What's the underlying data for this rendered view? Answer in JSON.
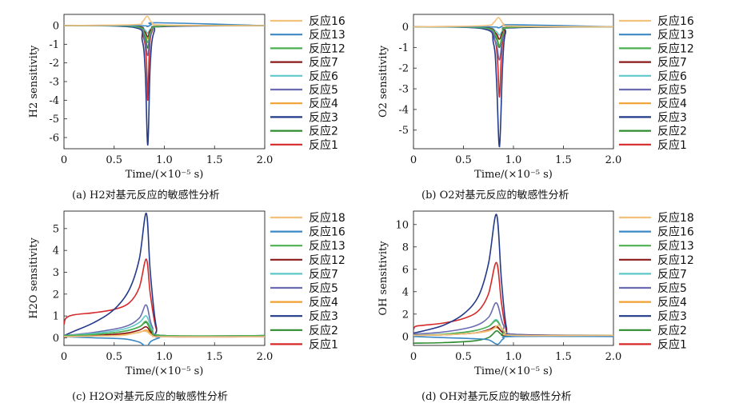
{
  "chart_data": [
    {
      "type": "line",
      "caption": "(a) H2对基元反应的敏感性分析",
      "xlabel": "Time/(×10⁻⁵ s)",
      "ylabel": "H2 sensitivity",
      "xlim": [
        0,
        2.0
      ],
      "ylim": [
        -6.6,
        0.6
      ],
      "xticks": [
        "0",
        "0.5",
        "1.0",
        "1.5",
        "2.0"
      ],
      "yticks": [
        "0",
        "-1",
        "-2",
        "-3",
        "-4",
        "-5",
        "-6"
      ],
      "legend_position": "right",
      "series": [
        {
          "name": "反应16",
          "color": "#f2c27d",
          "x": [
            0,
            0.7,
            0.78,
            0.83,
            0.88,
            1.0,
            2.0
          ],
          "y": [
            0,
            0.05,
            0.2,
            0.5,
            0.15,
            0.03,
            0
          ]
        },
        {
          "name": "反应13",
          "color": "#3b88c4",
          "x": [
            0,
            0.75,
            0.83,
            0.87,
            0.95,
            2.0
          ],
          "y": [
            0,
            0,
            -0.05,
            0.05,
            0.15,
            0
          ]
        },
        {
          "name": "反应12",
          "color": "#4caf50",
          "x": [
            0,
            0.7,
            0.8,
            0.835,
            0.87,
            1.0,
            2.0
          ],
          "y": [
            0,
            -0.05,
            -0.4,
            -0.9,
            -0.3,
            -0.02,
            0
          ]
        },
        {
          "name": "反应7",
          "color": "#8b1a1a",
          "x": [
            0,
            0.7,
            0.8,
            0.835,
            0.87,
            1.0,
            2.0
          ],
          "y": [
            0,
            -0.03,
            -0.3,
            -0.6,
            -0.2,
            -0.02,
            0
          ]
        },
        {
          "name": "反应6",
          "color": "#5fc8c8",
          "x": [
            0,
            0.7,
            0.8,
            0.835,
            0.87,
            1.0,
            2.0
          ],
          "y": [
            0,
            -0.02,
            -0.2,
            -0.4,
            -0.15,
            -0.01,
            0
          ]
        },
        {
          "name": "反应5",
          "color": "#6b6bb0",
          "x": [
            0,
            0.7,
            0.8,
            0.835,
            0.87,
            1.0,
            2.0
          ],
          "y": [
            0,
            -0.05,
            -0.7,
            -1.6,
            -0.4,
            -0.03,
            0
          ]
        },
        {
          "name": "反应4",
          "color": "#f0a030",
          "x": [
            0,
            0.7,
            0.8,
            0.835,
            0.87,
            1.0,
            2.0
          ],
          "y": [
            0,
            -0.03,
            -0.3,
            -0.7,
            -0.2,
            -0.02,
            0
          ]
        },
        {
          "name": "反应3",
          "color": "#233a8a",
          "x": [
            0,
            0.7,
            0.78,
            0.81,
            0.835,
            0.86,
            0.9,
            1.0,
            2.0
          ],
          "y": [
            0,
            -0.1,
            -0.8,
            -2.5,
            -6.4,
            -2.0,
            -0.3,
            -0.05,
            0
          ]
        },
        {
          "name": "反应2",
          "color": "#2e8b2e",
          "x": [
            0,
            0.7,
            0.8,
            0.835,
            0.87,
            1.0,
            2.0
          ],
          "y": [
            0,
            -0.05,
            -0.5,
            -1.2,
            -0.3,
            -0.02,
            0
          ]
        },
        {
          "name": "反应1",
          "color": "#d62828",
          "x": [
            0,
            0.7,
            0.79,
            0.82,
            0.835,
            0.85,
            0.88,
            1.0,
            2.0
          ],
          "y": [
            0,
            -0.05,
            -0.6,
            -1.8,
            -4.0,
            -1.5,
            -0.3,
            -0.03,
            0
          ]
        }
      ]
    },
    {
      "type": "line",
      "caption": "(b) O2对基元反应的敏感性分析",
      "xlabel": "Time/(×10⁻⁵ s)",
      "ylabel": "O2 sensitivity",
      "xlim": [
        0,
        2.0
      ],
      "ylim": [
        -5.9,
        0.6
      ],
      "xticks": [
        "0",
        "0.5",
        "1.0",
        "1.5",
        "2.0"
      ],
      "yticks": [
        "0",
        "-1",
        "-2",
        "-3",
        "-4",
        "-5"
      ],
      "legend_position": "right",
      "series": [
        {
          "name": "反应16",
          "color": "#f2c27d",
          "x": [
            0,
            0.7,
            0.8,
            0.85,
            0.9,
            1.0,
            2.0
          ],
          "y": [
            0,
            0.05,
            0.2,
            0.45,
            0.15,
            0.03,
            0
          ]
        },
        {
          "name": "反应13",
          "color": "#3b88c4",
          "x": [
            0,
            0.75,
            0.85,
            0.9,
            1.0,
            2.0
          ],
          "y": [
            0,
            0,
            -0.05,
            0.05,
            0.1,
            0
          ]
        },
        {
          "name": "反应12",
          "color": "#4caf50",
          "x": [
            0,
            0.7,
            0.82,
            0.86,
            0.9,
            1.0,
            2.0
          ],
          "y": [
            0,
            -0.05,
            -0.4,
            -0.9,
            -0.3,
            -0.02,
            0
          ]
        },
        {
          "name": "反应7",
          "color": "#8b1a1a",
          "x": [
            0,
            0.7,
            0.82,
            0.86,
            0.9,
            1.0,
            2.0
          ],
          "y": [
            0,
            -0.03,
            -0.3,
            -0.6,
            -0.2,
            -0.02,
            0
          ]
        },
        {
          "name": "反应6",
          "color": "#5fc8c8",
          "x": [
            0,
            0.7,
            0.82,
            0.86,
            0.9,
            1.0,
            2.0
          ],
          "y": [
            0,
            -0.02,
            -0.2,
            -0.4,
            -0.15,
            -0.01,
            0
          ]
        },
        {
          "name": "反应5",
          "color": "#6b6bb0",
          "x": [
            0,
            0.7,
            0.82,
            0.86,
            0.9,
            1.0,
            2.0
          ],
          "y": [
            0,
            -0.05,
            -0.7,
            -1.6,
            -0.4,
            -0.03,
            0
          ]
        },
        {
          "name": "反应4",
          "color": "#f0a030",
          "x": [
            0,
            0.7,
            0.82,
            0.86,
            0.9,
            1.0,
            2.0
          ],
          "y": [
            0,
            -0.03,
            -0.3,
            -0.6,
            -0.2,
            -0.02,
            0
          ]
        },
        {
          "name": "反应3",
          "color": "#233a8a",
          "x": [
            0,
            0.7,
            0.8,
            0.83,
            0.86,
            0.89,
            0.92,
            1.0,
            2.0
          ],
          "y": [
            0,
            -0.1,
            -0.8,
            -2.5,
            -5.8,
            -2.0,
            -0.3,
            -0.05,
            0
          ]
        },
        {
          "name": "反应2",
          "color": "#2e8b2e",
          "x": [
            0,
            0.7,
            0.82,
            0.86,
            0.9,
            1.0,
            2.0
          ],
          "y": [
            0,
            -0.05,
            -0.5,
            -1.0,
            -0.3,
            -0.02,
            0
          ]
        },
        {
          "name": "反应1",
          "color": "#d62828",
          "x": [
            0,
            0.7,
            0.81,
            0.84,
            0.86,
            0.88,
            0.91,
            1.0,
            2.0
          ],
          "y": [
            0,
            -0.05,
            -0.6,
            -1.6,
            -3.4,
            -1.4,
            -0.3,
            -0.03,
            0
          ]
        }
      ]
    },
    {
      "type": "line",
      "caption": "(c) H2O对基元反应的敏感性分析",
      "xlabel": "Time/(×10⁻⁵ s)",
      "ylabel": "H2O sensitivity",
      "xlim": [
        0,
        2.0
      ],
      "ylim": [
        -0.35,
        5.8
      ],
      "xticks": [
        "0",
        "0.5",
        "1.0",
        "1.5",
        "2.0"
      ],
      "yticks": [
        "0",
        "1",
        "2",
        "3",
        "4",
        "5"
      ],
      "legend_position": "right",
      "series": [
        {
          "name": "反应18",
          "color": "#f2c27d",
          "x": [
            0,
            0.3,
            0.6,
            0.8,
            0.88,
            1.0,
            2.0
          ],
          "y": [
            0.05,
            0.08,
            0.12,
            0.3,
            0.1,
            0.05,
            0.05
          ]
        },
        {
          "name": "反应16",
          "color": "#3b88c4",
          "x": [
            0,
            0.3,
            0.6,
            0.75,
            0.82,
            0.87,
            0.95,
            1.0,
            2.0
          ],
          "y": [
            0.05,
            0.0,
            -0.05,
            -0.2,
            -0.4,
            -0.15,
            0.0,
            0.05,
            0.05
          ]
        },
        {
          "name": "反应13",
          "color": "#4caf50",
          "x": [
            0,
            0.3,
            0.6,
            0.75,
            0.82,
            0.88,
            1.0,
            2.0
          ],
          "y": [
            0.1,
            0.15,
            0.3,
            0.5,
            0.75,
            0.3,
            0.1,
            0.1
          ]
        },
        {
          "name": "反应12",
          "color": "#8b1a1a",
          "x": [
            0,
            0.3,
            0.6,
            0.75,
            0.82,
            0.88,
            1.0,
            2.0
          ],
          "y": [
            0.05,
            0.1,
            0.2,
            0.35,
            0.5,
            0.2,
            0.05,
            0.05
          ]
        },
        {
          "name": "反应7",
          "color": "#5fc8c8",
          "x": [
            0,
            0.3,
            0.6,
            0.75,
            0.82,
            0.88,
            1.0,
            2.0
          ],
          "y": [
            0.1,
            0.2,
            0.4,
            0.7,
            1.0,
            0.4,
            0.1,
            0.1
          ]
        },
        {
          "name": "反应5",
          "color": "#6b6bb0",
          "x": [
            0,
            0.3,
            0.6,
            0.75,
            0.82,
            0.88,
            1.0,
            2.0
          ],
          "y": [
            0.1,
            0.25,
            0.5,
            0.9,
            1.5,
            0.5,
            0.1,
            0.1
          ]
        },
        {
          "name": "反应4",
          "color": "#f0a030",
          "x": [
            0,
            0.3,
            0.6,
            0.75,
            0.82,
            0.88,
            1.0,
            2.0
          ],
          "y": [
            0.05,
            0.08,
            0.15,
            0.25,
            0.35,
            0.15,
            0.05,
            0.05
          ]
        },
        {
          "name": "反应3",
          "color": "#233a8a",
          "x": [
            0,
            0.1,
            0.3,
            0.5,
            0.65,
            0.75,
            0.82,
            0.86,
            0.92,
            1.0,
            2.0
          ],
          "y": [
            0.1,
            0.3,
            0.7,
            1.3,
            2.2,
            3.6,
            5.7,
            3.0,
            0.5,
            0.1,
            0.1
          ]
        },
        {
          "name": "反应2",
          "color": "#2e8b2e",
          "x": [
            0,
            0.3,
            0.6,
            0.75,
            0.82,
            0.88,
            1.0,
            2.0
          ],
          "y": [
            0.08,
            0.15,
            0.3,
            0.5,
            0.7,
            0.25,
            0.08,
            0.08
          ]
        },
        {
          "name": "反应1",
          "color": "#d62828",
          "x": [
            0,
            0.02,
            0.1,
            0.3,
            0.5,
            0.65,
            0.75,
            0.82,
            0.86,
            0.92,
            1.0,
            2.0
          ],
          "y": [
            0.6,
            0.9,
            1.05,
            1.15,
            1.3,
            1.6,
            2.3,
            3.6,
            2.0,
            0.4,
            0.1,
            0.1
          ]
        }
      ]
    },
    {
      "type": "line",
      "caption": "(d) OH对基元反应的敏感性分析",
      "xlabel": "Time/(×10⁻⁵ s)",
      "ylabel": "OH sensitivity",
      "xlim": [
        0,
        2.0
      ],
      "ylim": [
        -0.8,
        11.2
      ],
      "xticks": [
        "0",
        "0.5",
        "1.0",
        "1.5",
        "2.0"
      ],
      "yticks": [
        "0",
        "2",
        "4",
        "6",
        "8",
        "10"
      ],
      "legend_position": "right",
      "series": [
        {
          "name": "反应18",
          "color": "#f2c27d",
          "x": [
            0,
            0.3,
            0.6,
            0.78,
            0.85,
            0.92,
            1.0,
            2.0
          ],
          "y": [
            0.1,
            0.15,
            0.3,
            0.6,
            1.0,
            0.4,
            0.1,
            0.1
          ]
        },
        {
          "name": "反应16",
          "color": "#3b88c4",
          "x": [
            0,
            0.3,
            0.6,
            0.75,
            0.84,
            0.9,
            1.0,
            2.0
          ],
          "y": [
            0.0,
            -0.1,
            -0.2,
            -0.3,
            -0.7,
            -0.2,
            0.0,
            0.0
          ]
        },
        {
          "name": "反应13",
          "color": "#4caf50",
          "x": [
            0,
            0.3,
            0.6,
            0.75,
            0.83,
            0.9,
            1.0,
            2.0
          ],
          "y": [
            0.1,
            0.2,
            0.5,
            0.9,
            1.4,
            0.5,
            0.1,
            0.1
          ]
        },
        {
          "name": "反应12",
          "color": "#8b1a1a",
          "x": [
            0,
            0.3,
            0.6,
            0.75,
            0.83,
            0.9,
            1.0,
            2.0
          ],
          "y": [
            0.1,
            0.15,
            0.3,
            0.6,
            0.9,
            0.3,
            0.1,
            0.1
          ]
        },
        {
          "name": "反应7",
          "color": "#5fc8c8",
          "x": [
            0,
            0.3,
            0.6,
            0.75,
            0.83,
            0.9,
            1.0,
            2.0
          ],
          "y": [
            0.1,
            0.2,
            0.5,
            0.9,
            1.5,
            0.5,
            0.1,
            0.1
          ]
        },
        {
          "name": "反应5",
          "color": "#6b6bb0",
          "x": [
            0,
            0.3,
            0.6,
            0.75,
            0.83,
            0.9,
            1.0,
            2.0
          ],
          "y": [
            0.2,
            0.4,
            0.9,
            1.7,
            3.0,
            1.0,
            0.2,
            0.1
          ]
        },
        {
          "name": "反应4",
          "color": "#f0a030",
          "x": [
            0,
            0.3,
            0.6,
            0.75,
            0.83,
            0.9,
            1.0,
            2.0
          ],
          "y": [
            0.1,
            0.15,
            0.3,
            0.5,
            0.8,
            0.3,
            0.1,
            0.1
          ]
        },
        {
          "name": "反应3",
          "color": "#233a8a",
          "x": [
            0,
            0.1,
            0.3,
            0.5,
            0.65,
            0.75,
            0.83,
            0.88,
            0.93,
            1.0,
            2.0
          ],
          "y": [
            0.3,
            0.5,
            1.0,
            2.0,
            3.6,
            6.5,
            10.9,
            5.0,
            0.8,
            0.2,
            0.1
          ]
        },
        {
          "name": "反应2",
          "color": "#2e8b2e",
          "x": [
            0,
            0.3,
            0.6,
            0.75,
            0.83,
            0.88,
            1.0,
            2.0
          ],
          "y": [
            -0.6,
            -0.55,
            -0.4,
            -0.1,
            0.5,
            0.2,
            0.05,
            0.05
          ]
        },
        {
          "name": "反应1",
          "color": "#d62828",
          "x": [
            0,
            0.02,
            0.1,
            0.3,
            0.5,
            0.65,
            0.75,
            0.83,
            0.88,
            0.93,
            1.0,
            2.0
          ],
          "y": [
            0.6,
            0.9,
            1.0,
            1.2,
            1.6,
            2.3,
            3.8,
            6.6,
            3.0,
            0.5,
            0.1,
            0.1
          ]
        }
      ]
    }
  ]
}
